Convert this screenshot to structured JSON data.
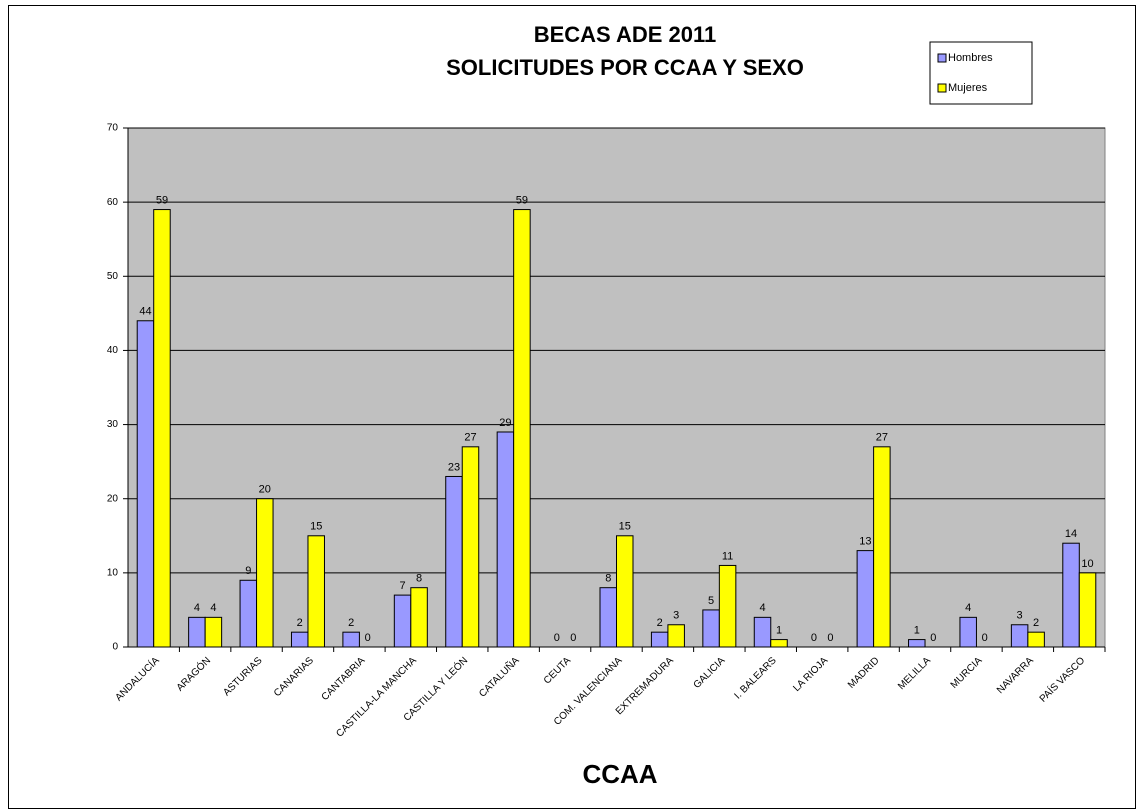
{
  "chart_data": {
    "type": "bar",
    "title": [
      "BECAS ADE 2011",
      "SOLICITUDES POR CCAA Y SEXO"
    ],
    "x_label": "CCAA",
    "categories": [
      "ANDALUCÍA",
      "ARAGÓN",
      "ASTURIAS",
      "CANARIAS",
      "CANTABRIA",
      "CASTILLA-LA MANCHA",
      "CASTILLA Y LEÓN",
      "CATALUÑA",
      "CEUTA",
      "COM. VALENCIANA",
      "EXTREMADURA",
      "GALICIA",
      "I. BALEARS",
      "LA RIOJA",
      "MADRID",
      "MELILLA",
      "MURCIA",
      "NAVARRA",
      "PAÍS VASCO"
    ],
    "series": [
      {
        "name": "Hombres",
        "color": "#9999ff",
        "values": [
          44,
          4,
          9,
          2,
          2,
          7,
          23,
          29,
          0,
          8,
          2,
          5,
          4,
          0,
          13,
          1,
          4,
          3,
          14
        ]
      },
      {
        "name": "Mujeres",
        "color": "#ffff00",
        "values": [
          59,
          4,
          20,
          15,
          0,
          8,
          27,
          59,
          0,
          15,
          3,
          11,
          1,
          0,
          27,
          0,
          0,
          2,
          10
        ]
      }
    ],
    "ylim": [
      0,
      70
    ],
    "yticks": [
      0,
      10,
      20,
      30,
      40,
      50,
      60,
      70
    ],
    "grid": true,
    "plot_background": "#c0c0c0",
    "legend": "top-right"
  }
}
